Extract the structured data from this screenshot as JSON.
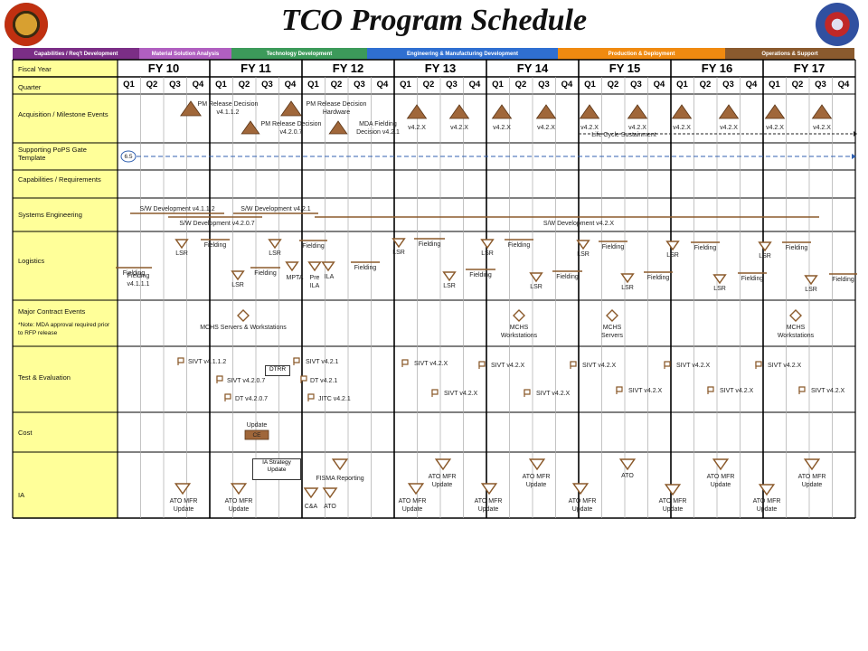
{
  "title": "TCO Program Schedule",
  "phases": [
    {
      "label": "Capabilities / Req't Development",
      "color": "#7b2e86"
    },
    {
      "label": "Material Solution Analysis",
      "color": "#b05fc0"
    },
    {
      "label": "Technology Development",
      "color": "#3c9a5a"
    },
    {
      "label": "Engineering & Manufacturing Development",
      "color": "#2f6fd1"
    },
    {
      "label": "Production & Deployment",
      "color": "#f08a10"
    },
    {
      "label": "Operations & Support",
      "color": "#8a5a2e"
    }
  ],
  "rows": {
    "fiscal_year": "Fiscal Year",
    "quarter": "Quarter",
    "acquisition": "Acquisition / Milestone Events",
    "pops": "Supporting PoPS Gate Template",
    "capabilities": "Capabilities / Requirements",
    "systems_engineering": "Systems Engineering",
    "logistics": "Logistics",
    "major_contract": "Major Contract Events",
    "major_contract_note": "*Note: MDA approval required prior to RFP release",
    "test_eval": "Test & Evaluation",
    "cost": "Cost",
    "ia": "IA"
  },
  "fiscal_years": [
    "FY 10",
    "FY 11",
    "FY 12",
    "FY 13",
    "FY 14",
    "FY 15",
    "FY 16",
    "FY 17"
  ],
  "quarters": [
    "Q1",
    "Q2",
    "Q3",
    "Q4"
  ],
  "acquisition": {
    "pm_release_1": "PM Release Decision v4.1.1.2",
    "pm_release_2": "PM Release Decision v4.2.0.7",
    "pm_release_hw": "PM Release Decision Hardware",
    "mda_fielding": "MDA Fielding Decision v4.2.1",
    "v42x": "v4.2.X",
    "lcs": "Life Cycle Sustainment"
  },
  "pops_version": "6.5",
  "se": {
    "sw1": "S/W Development v4.1.1.2",
    "sw2": "S/W Development v4.2.1",
    "sw3": "S/W Development v4.2.0.7",
    "sw4": "S/W Development v4.2.X"
  },
  "logistics": {
    "lsr": "LSR",
    "fielding": "Fielding",
    "fielding_v": "Fielding v4.1.1.1",
    "mpta": "MPTA",
    "pre_ila": "Pre ILA",
    "ila": "ILA"
  },
  "contract": {
    "mchs_sw": "MCHS Servers & Workstations",
    "mchs_w": "MCHS Workstations",
    "mchs_s": "MCHS Servers"
  },
  "te": {
    "sivt_4112": "SIVT v4.1.1.2",
    "sivt_4207": "SIVT v4.2.0.7",
    "dt_4207": "DT v4.2.0.7",
    "dtrr": "DTRR",
    "sivt_421": "SIVT v4.2.1",
    "dt_421": "DT v4.2.1",
    "jitc_421": "JITC v4.2.1",
    "sivt_42x": "SIVT v4.2.X"
  },
  "cost": {
    "update": "Update",
    "ce": "CE"
  },
  "ia": {
    "ato_mfr_update": "ATO MFR Update",
    "ia_strategy": "IA Strategy Update",
    "fisma": "FISMA Reporting",
    "cna": "C&A",
    "ato": "ATO"
  }
}
